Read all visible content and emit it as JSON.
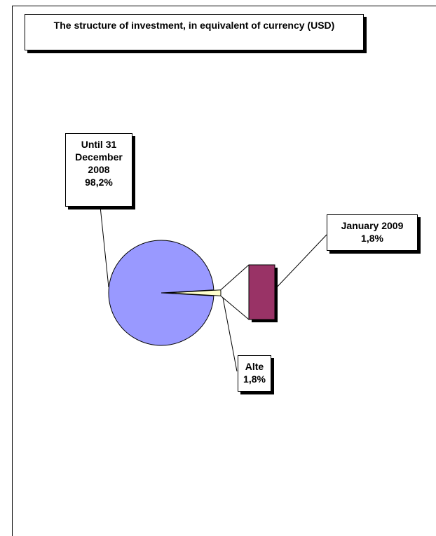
{
  "chart_data": {
    "type": "pie-of-bar",
    "title": "The structure of investment, in equivalent of currency (USD)",
    "categories": [
      "Until 31 December 2008",
      "Alte"
    ],
    "values": [
      98.2,
      1.8
    ],
    "value_labels": [
      "98,2%",
      "1,8%"
    ],
    "colors": [
      "#9999ff",
      "#ffffcc"
    ],
    "secondary": {
      "categories": [
        "January 2009"
      ],
      "values": [
        1.8
      ],
      "value_labels": [
        "1,8%"
      ],
      "color": "#993366"
    }
  }
}
